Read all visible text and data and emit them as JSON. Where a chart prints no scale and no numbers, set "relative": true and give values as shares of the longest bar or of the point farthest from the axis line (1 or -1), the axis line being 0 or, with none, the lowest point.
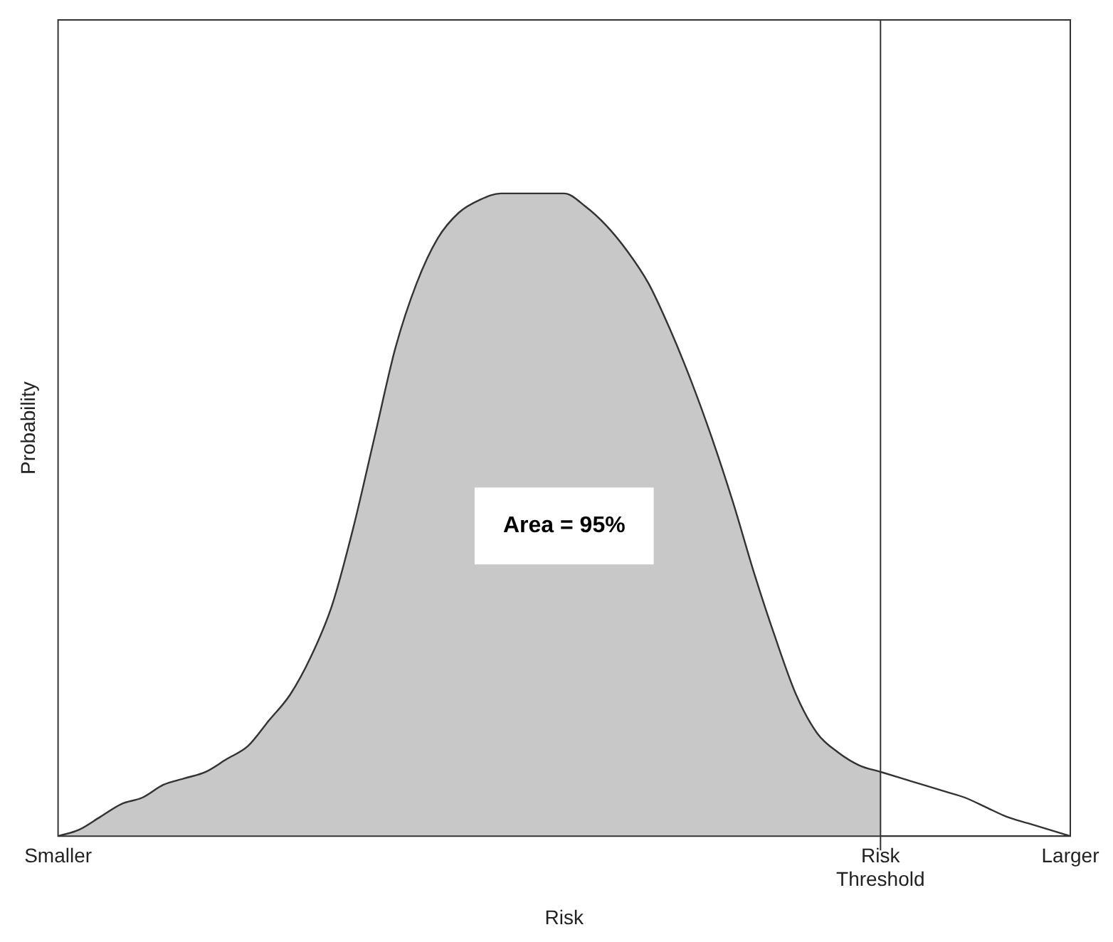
{
  "chart_data": {
    "type": "area",
    "relative": true,
    "xlabel": "Risk",
    "ylabel": "Probability",
    "categories": [
      "Smaller",
      null,
      null,
      null,
      null,
      null,
      null,
      null,
      null,
      null,
      null,
      null,
      null,
      null,
      null,
      null,
      null,
      null,
      null,
      null,
      null,
      null,
      null,
      null,
      null,
      null,
      null,
      null,
      null,
      null,
      null,
      null,
      null,
      null,
      null,
      null,
      null,
      null,
      null,
      "Risk Threshold",
      null,
      null,
      null,
      null,
      null,
      null,
      null,
      null,
      "Larger"
    ],
    "series": [
      {
        "type": "area",
        "color": "#c8c8c8",
        "values": [
          0,
          0.01,
          0.03,
          0.05,
          0.06,
          0.08,
          0.09,
          0.1,
          0.12,
          0.14,
          0.18,
          0.22,
          0.28,
          0.36,
          0.48,
          0.62,
          0.76,
          0.86,
          0.93,
          0.97,
          0.99,
          1,
          1,
          1,
          1,
          0.98,
          0.95,
          0.91,
          0.86,
          0.79,
          0.71,
          0.62,
          0.52,
          0.41,
          0.31,
          0.22,
          0.16,
          0.13,
          0.11,
          0.1,
          null,
          null,
          null,
          null,
          null,
          null,
          null,
          null,
          null
        ]
      },
      {
        "type": "line",
        "color": "#333333",
        "values": [
          null,
          null,
          null,
          null,
          null,
          null,
          null,
          null,
          null,
          null,
          null,
          null,
          null,
          null,
          null,
          null,
          null,
          null,
          null,
          null,
          null,
          null,
          null,
          null,
          null,
          null,
          null,
          null,
          null,
          null,
          null,
          null,
          null,
          null,
          null,
          null,
          null,
          null,
          null,
          0.1,
          0.09,
          0.08,
          0.07,
          0.06,
          0.045,
          0.03,
          0.02,
          0.01,
          0
        ]
      }
    ],
    "ref_lines": [
      {
        "axis": "x",
        "value": "Risk Threshold",
        "color": "#333333"
      }
    ],
    "annotations": [
      "Area = 95%"
    ],
    "legend": false,
    "marker": "none",
    "grid": false
  }
}
